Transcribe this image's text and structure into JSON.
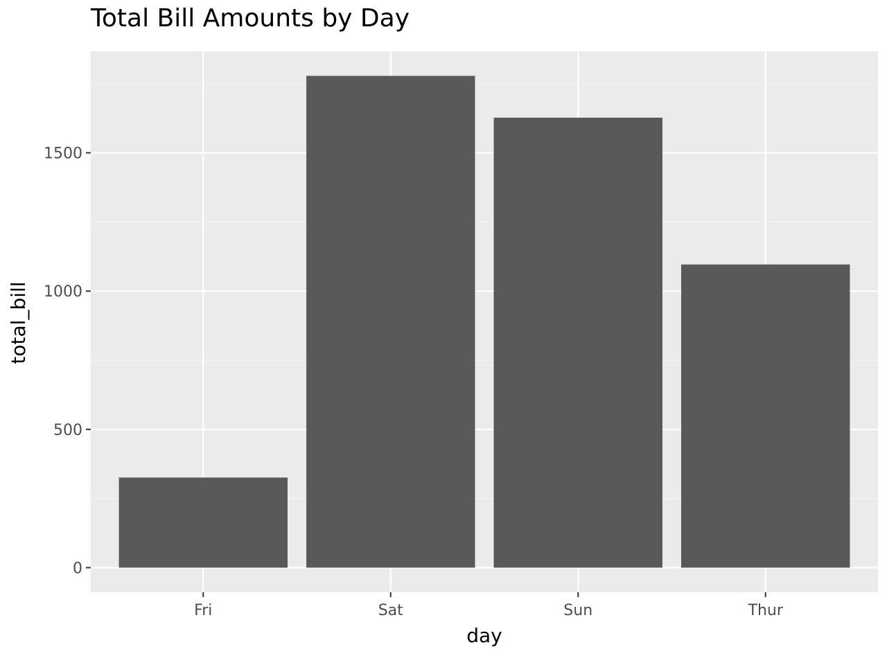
{
  "chart_data": {
    "type": "bar",
    "title": "Total Bill Amounts by Day",
    "xlabel": "day",
    "ylabel": "total_bill",
    "categories": [
      "Fri",
      "Sat",
      "Sun",
      "Thur"
    ],
    "values": [
      325.88,
      1778.4,
      1627.16,
      1096.33
    ],
    "ylim": [
      -89.0,
      1867.3
    ],
    "yticks": [
      0,
      500,
      1000,
      1500
    ],
    "ytick_labels": [
      "0",
      "500",
      "1000",
      "1500"
    ],
    "grid": true,
    "legend": "none",
    "colors": {
      "bar": "#595959",
      "panel": "#ebebeb",
      "grid_major": "#ffffff",
      "grid_minor": "#f5f5f5",
      "tick_text": "#4d4d4d",
      "text": "#000000"
    }
  }
}
